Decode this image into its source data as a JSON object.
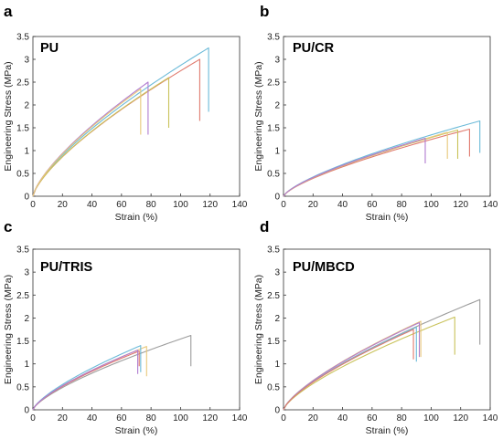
{
  "figure": {
    "colors": [
      "#6bbad8",
      "#e07a6e",
      "#c9c25a",
      "#b07bd0",
      "#9c9c9c",
      "#e8c87a"
    ]
  },
  "chart_data": [
    {
      "type": "line",
      "panel_letter": "a",
      "title": "PU",
      "xlabel": "Strain (%)",
      "ylabel": "Engineering Stress (MPa)",
      "xlim": [
        0,
        140
      ],
      "ylim": [
        0,
        3.5
      ],
      "xticks": [
        "0",
        "20",
        "40",
        "60",
        "80",
        "100",
        "120",
        "140"
      ],
      "yticks": [
        "0",
        "0.5",
        "1",
        "1.5",
        "2",
        "2.5",
        "3",
        "3.5"
      ],
      "grid": false,
      "series": [
        {
          "color": "#6bbad8",
          "end_strain": 119,
          "end_stress": 3.25,
          "break_to": 1.85
        },
        {
          "color": "#e07a6e",
          "end_strain": 113,
          "end_stress": 3.0,
          "break_to": 1.65
        },
        {
          "color": "#c9c25a",
          "end_strain": 92,
          "end_stress": 2.6,
          "break_to": 1.5
        },
        {
          "color": "#b07bd0",
          "end_strain": 78,
          "end_stress": 2.5,
          "break_to": 1.35
        },
        {
          "color": "#e8c87a",
          "end_strain": 73,
          "end_stress": 2.35,
          "break_to": 1.35
        }
      ]
    },
    {
      "type": "line",
      "panel_letter": "b",
      "title": "PU/CR",
      "xlabel": "Strain (%)",
      "ylabel": "Engineering Stress (MPa)",
      "xlim": [
        0,
        140
      ],
      "ylim": [
        0,
        3.5
      ],
      "xticks": [
        "0",
        "20",
        "40",
        "60",
        "80",
        "100",
        "120",
        "140"
      ],
      "yticks": [
        "0",
        "0.5",
        "1",
        "1.5",
        "2",
        "2.5",
        "3",
        "3.5"
      ],
      "grid": false,
      "series": [
        {
          "color": "#6bbad8",
          "end_strain": 133,
          "end_stress": 1.65,
          "break_to": 0.95
        },
        {
          "color": "#e07a6e",
          "end_strain": 126,
          "end_stress": 1.47,
          "break_to": 0.87
        },
        {
          "color": "#c9c25a",
          "end_strain": 118,
          "end_stress": 1.45,
          "break_to": 0.82
        },
        {
          "color": "#e8c87a",
          "end_strain": 111,
          "end_stress": 1.4,
          "break_to": 0.82
        },
        {
          "color": "#b07bd0",
          "end_strain": 96,
          "end_stress": 1.27,
          "break_to": 0.72
        }
      ]
    },
    {
      "type": "line",
      "panel_letter": "c",
      "title": "PU/TRIS",
      "xlabel": "Strain (%)",
      "ylabel": "Engineering Stress (MPa)",
      "xlim": [
        0,
        140
      ],
      "ylim": [
        0,
        3.5
      ],
      "xticks": [
        "0",
        "20",
        "40",
        "60",
        "80",
        "100",
        "120",
        "140"
      ],
      "yticks": [
        "0",
        "0.5",
        "1",
        "1.5",
        "2",
        "2.5",
        "3",
        "3.5"
      ],
      "grid": false,
      "series": [
        {
          "color": "#9c9c9c",
          "end_strain": 107,
          "end_stress": 1.62,
          "break_to": 0.95
        },
        {
          "color": "#e8c87a",
          "end_strain": 77,
          "end_stress": 1.38,
          "break_to": 0.73
        },
        {
          "color": "#6bbad8",
          "end_strain": 73,
          "end_stress": 1.4,
          "break_to": 0.82
        },
        {
          "color": "#e07a6e",
          "end_strain": 72,
          "end_stress": 1.28,
          "break_to": 0.95
        },
        {
          "color": "#b07bd0",
          "end_strain": 71,
          "end_stress": 1.3,
          "break_to": 0.78
        }
      ]
    },
    {
      "type": "line",
      "panel_letter": "d",
      "title": "PU/MBCD",
      "xlabel": "Strain (%)",
      "ylabel": "Engineering Stress (MPa)",
      "xlim": [
        0,
        140
      ],
      "ylim": [
        0,
        3.5
      ],
      "xticks": [
        "0",
        "20",
        "40",
        "60",
        "80",
        "100",
        "120",
        "140"
      ],
      "yticks": [
        "0",
        "0.5",
        "1",
        "1.5",
        "2",
        "2.5",
        "3",
        "3.5"
      ],
      "grid": false,
      "series": [
        {
          "color": "#9c9c9c",
          "end_strain": 133,
          "end_stress": 2.4,
          "break_to": 1.42
        },
        {
          "color": "#c9c25a",
          "end_strain": 116,
          "end_stress": 2.02,
          "break_to": 1.2
        },
        {
          "color": "#e8c87a",
          "end_strain": 93,
          "end_stress": 1.93,
          "break_to": 1.15
        },
        {
          "color": "#b07bd0",
          "end_strain": 92,
          "end_stress": 1.9,
          "break_to": 1.15
        },
        {
          "color": "#6bbad8",
          "end_strain": 90,
          "end_stress": 1.8,
          "break_to": 1.05
        },
        {
          "color": "#e07a6e",
          "end_strain": 88,
          "end_stress": 1.75,
          "break_to": 1.1
        }
      ]
    }
  ]
}
